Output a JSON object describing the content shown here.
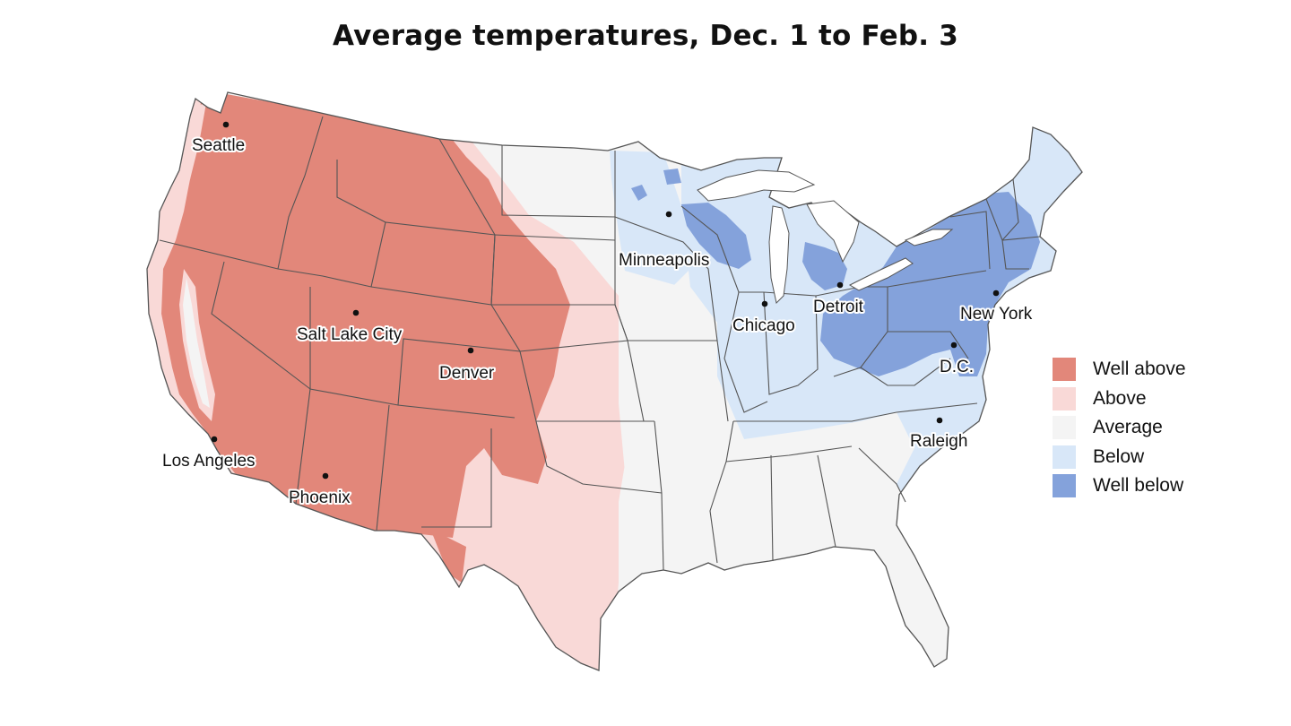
{
  "title": "Average temperatures, Dec. 1 to Feb. 3",
  "legend": [
    {
      "label": "Well above",
      "color": "#e2877a"
    },
    {
      "label": "Above",
      "color": "#f9d9d7"
    },
    {
      "label": "Average",
      "color": "#f4f4f4"
    },
    {
      "label": "Below",
      "color": "#d8e7f8"
    },
    {
      "label": "Well below",
      "color": "#84a2db"
    }
  ],
  "cities": [
    "Seattle",
    "Minneapolis",
    "Detroit",
    "Chicago",
    "New York",
    "Salt Lake City",
    "Denver",
    "D.C.",
    "Raleigh",
    "Los Angeles",
    "Phoenix"
  ],
  "colors": {
    "border": "#555555",
    "water": "#ffffff"
  }
}
